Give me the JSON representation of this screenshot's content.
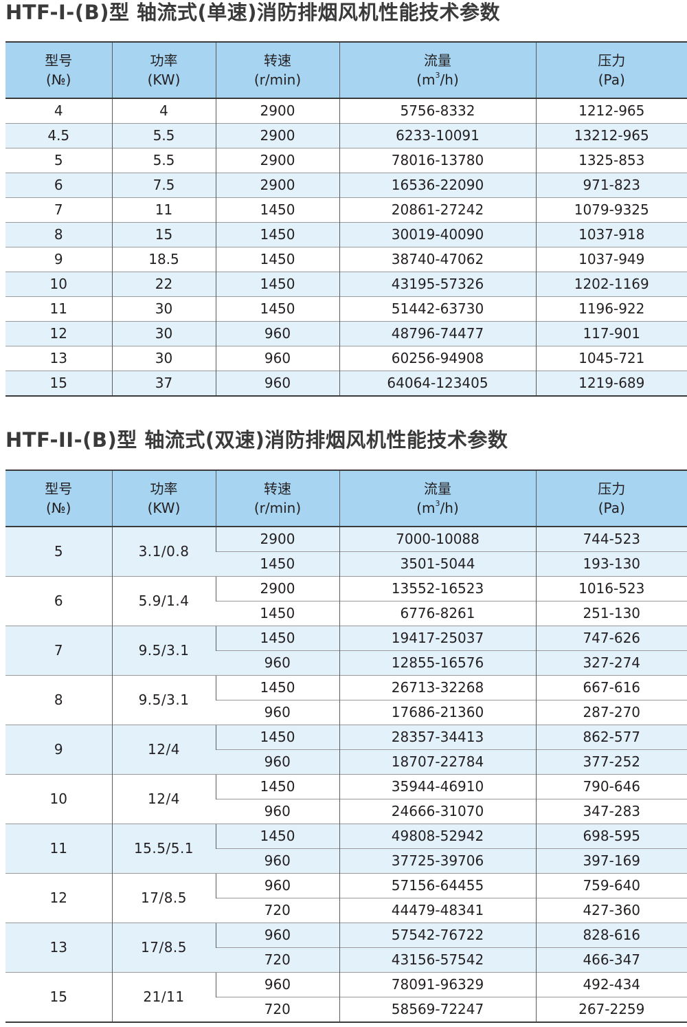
{
  "table1": {
    "title": "HTF-I-(B)型 轴流式(单速)消防排烟风机性能技术参数",
    "headers": [
      {
        "line1": "型号",
        "line2": "(№)"
      },
      {
        "line1": "功率",
        "line2": "(KW)"
      },
      {
        "line1": "转速",
        "line2": "(r/min)"
      },
      {
        "line1": "流量",
        "line2_pre": "(m",
        "line2_sup": "3",
        "line2_post": "/h)"
      },
      {
        "line1": "压力",
        "line2": "(Pa)"
      }
    ],
    "rows": [
      [
        "4",
        "4",
        "2900",
        "5756-8332",
        "1212-965"
      ],
      [
        "4.5",
        "5.5",
        "2900",
        "6233-10091",
        "13212-965"
      ],
      [
        "5",
        "5.5",
        "2900",
        "78016-13780",
        "1325-853"
      ],
      [
        "6",
        "7.5",
        "2900",
        "16536-22090",
        "971-823"
      ],
      [
        "7",
        "11",
        "1450",
        "20861-27242",
        "1079-9325"
      ],
      [
        "8",
        "15",
        "1450",
        "30019-40090",
        "1037-918"
      ],
      [
        "9",
        "18.5",
        "1450",
        "38740-47062",
        "1037-949"
      ],
      [
        "10",
        "22",
        "1450",
        "43195-57326",
        "1202-1169"
      ],
      [
        "11",
        "30",
        "1450",
        "51442-63730",
        "1196-922"
      ],
      [
        "12",
        "30",
        "960",
        "48796-74477",
        "117-901"
      ],
      [
        "13",
        "30",
        "960",
        "60256-94908",
        "1045-721"
      ],
      [
        "15",
        "37",
        "960",
        "64064-123405",
        "1219-689"
      ]
    ]
  },
  "table2": {
    "title": "HTF-II-(B)型 轴流式(双速)消防排烟风机性能技术参数",
    "headers": [
      {
        "line1": "型号",
        "line2": "(№)"
      },
      {
        "line1": "功率",
        "line2": "(KW)"
      },
      {
        "line1": "转速",
        "line2": "(r/min)"
      },
      {
        "line1": "流量",
        "line2_pre": "(m",
        "line2_sup": "3",
        "line2_post": "/h)"
      },
      {
        "line1": "压力",
        "line2": "(Pa)"
      }
    ],
    "groups": [
      {
        "model": "5",
        "power": "3.1/0.8",
        "rows": [
          [
            "2900",
            "7000-10088",
            "744-523"
          ],
          [
            "1450",
            "3501-5044",
            "193-130"
          ]
        ]
      },
      {
        "model": "6",
        "power": "5.9/1.4",
        "rows": [
          [
            "2900",
            "13552-16523",
            "1016-523"
          ],
          [
            "1450",
            "6776-8261",
            "251-130"
          ]
        ]
      },
      {
        "model": "7",
        "power": "9.5/3.1",
        "rows": [
          [
            "1450",
            "19417-25037",
            "747-626"
          ],
          [
            "960",
            "12855-16576",
            "327-274"
          ]
        ]
      },
      {
        "model": "8",
        "power": "9.5/3.1",
        "rows": [
          [
            "1450",
            "26713-32268",
            "667-616"
          ],
          [
            "960",
            "17686-21360",
            "287-270"
          ]
        ]
      },
      {
        "model": "9",
        "power": "12/4",
        "rows": [
          [
            "1450",
            "28357-34413",
            "862-577"
          ],
          [
            "960",
            "18707-22784",
            "377-252"
          ]
        ]
      },
      {
        "model": "10",
        "power": "12/4",
        "rows": [
          [
            "1450",
            "35944-46910",
            "790-646"
          ],
          [
            "960",
            "24666-31070",
            "347-283"
          ]
        ]
      },
      {
        "model": "11",
        "power": "15.5/5.1",
        "rows": [
          [
            "1450",
            "49808-52942",
            "698-595"
          ],
          [
            "960",
            "37725-39706",
            "397-169"
          ]
        ]
      },
      {
        "model": "12",
        "power": "17/8.5",
        "rows": [
          [
            "960",
            "57156-64455",
            "759-640"
          ],
          [
            "720",
            "44479-48341",
            "427-360"
          ]
        ]
      },
      {
        "model": "13",
        "power": "17/8.5",
        "rows": [
          [
            "960",
            "57542-76722",
            "828-616"
          ],
          [
            "720",
            "43156-57542",
            "466-347"
          ]
        ]
      },
      {
        "model": "15",
        "power": "21/11",
        "rows": [
          [
            "960",
            "78091-96329",
            "492-434"
          ],
          [
            "720",
            "58569-72247",
            "267-2259"
          ]
        ]
      }
    ]
  }
}
